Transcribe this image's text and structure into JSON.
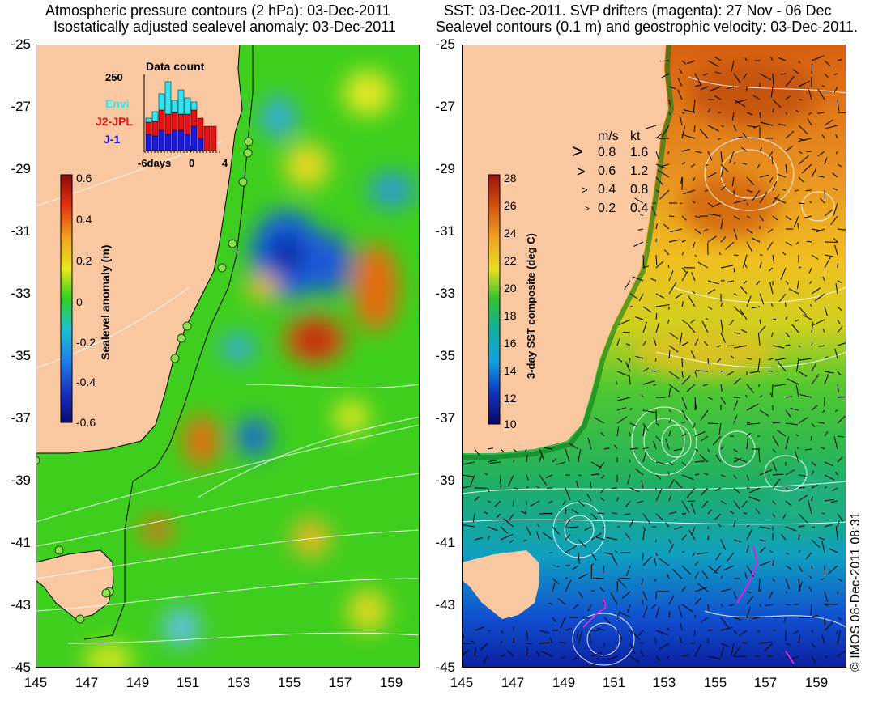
{
  "left_panel": {
    "title_line1": "Atmospheric pressure contours (2 hPa): 03-Dec-2011",
    "title_line2": "Isostatically adjusted sealevel anomaly: 03-Dec-2011",
    "y_ticks": [
      "-25",
      "-27",
      "-29",
      "-31",
      "-33",
      "-35",
      "-37",
      "-39",
      "-41",
      "-43",
      "-45"
    ],
    "x_ticks": [
      "145",
      "147",
      "149",
      "151",
      "153",
      "155",
      "157",
      "159"
    ],
    "colorbar": {
      "label": "Sealevel anomaly (m)",
      "ticks": [
        "0.6",
        "0.4",
        "0.2",
        "0",
        "-0.2",
        "-0.4",
        "-0.6"
      ]
    },
    "data_count": {
      "title": "Data count",
      "ymax_label": "250",
      "x_labels": [
        "-6days",
        "0",
        "4"
      ],
      "legend": [
        {
          "name": "Envi",
          "color": "#33e5f2"
        },
        {
          "name": "J2-JPL",
          "color": "#e81010"
        },
        {
          "name": "J-1",
          "color": "#1a1ae0"
        }
      ]
    }
  },
  "right_panel": {
    "title_line1": "SST: 03-Dec-2011. SVP drifters (magenta): 27 Nov - 06 Dec",
    "title_line2": "Sealevel contours (0.1 m) and geostrophic velocity: 03-Dec-2011.",
    "y_ticks": [
      "-25",
      "-27",
      "-29",
      "-31",
      "-33",
      "-35",
      "-37",
      "-39",
      "-41",
      "-43",
      "-45"
    ],
    "x_ticks": [
      "145",
      "147",
      "149",
      "151",
      "153",
      "155",
      "157",
      "159"
    ],
    "colorbar": {
      "label": "3-day SST composite (deg C)",
      "ticks": [
        "28",
        "26",
        "24",
        "22",
        "20",
        "18",
        "16",
        "14",
        "12",
        "10"
      ]
    },
    "velocity_legend": {
      "header_ms": "m/s",
      "header_kt": "kt",
      "rows": [
        {
          "ms": "0.8",
          "kt": "1.6"
        },
        {
          "ms": "0.6",
          "kt": "1.2"
        },
        {
          "ms": "0.4",
          "kt": "0.8"
        },
        {
          "ms": "0.2",
          "kt": "0.4"
        }
      ]
    }
  },
  "copyright": "© IMOS 08-Dec-2011 08:31",
  "colors": {
    "land": "#f9c8a0",
    "sla_green": "#4ad41a",
    "sst_orange": "#e88a18",
    "contour": "#ffffff"
  }
}
